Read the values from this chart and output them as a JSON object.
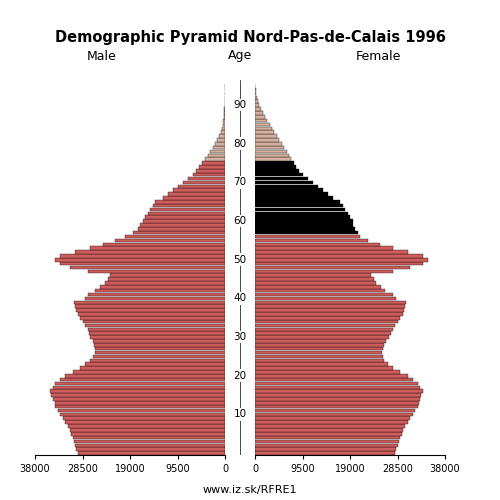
{
  "title": "Demographic Pyramid Nord-Pas-de-Calais 1996",
  "subtitle_left": "Male",
  "subtitle_center": "Age",
  "subtitle_right": "Female",
  "footer": "www.iz.sk/RFRE1",
  "xlim": 38000,
  "ages": [
    0,
    1,
    2,
    3,
    4,
    5,
    6,
    7,
    8,
    9,
    10,
    11,
    12,
    13,
    14,
    15,
    16,
    17,
    18,
    19,
    20,
    21,
    22,
    23,
    24,
    25,
    26,
    27,
    28,
    29,
    30,
    31,
    32,
    33,
    34,
    35,
    36,
    37,
    38,
    39,
    40,
    41,
    42,
    43,
    44,
    45,
    46,
    47,
    48,
    49,
    50,
    51,
    52,
    53,
    54,
    55,
    56,
    57,
    58,
    59,
    60,
    61,
    62,
    63,
    64,
    65,
    66,
    67,
    68,
    69,
    70,
    71,
    72,
    73,
    74,
    75,
    76,
    77,
    78,
    79,
    80,
    81,
    82,
    83,
    84,
    85,
    86,
    87,
    88,
    89,
    90,
    91,
    92,
    93,
    94,
    95
  ],
  "male": [
    29500,
    29800,
    30000,
    30200,
    30500,
    30800,
    31000,
    31500,
    32000,
    32500,
    33000,
    33500,
    34000,
    34000,
    34500,
    34800,
    35000,
    34500,
    34000,
    33000,
    32000,
    30500,
    29000,
    28000,
    27000,
    26500,
    26000,
    26000,
    26200,
    26500,
    27000,
    27200,
    27500,
    28000,
    28500,
    29000,
    29500,
    29800,
    30000,
    30200,
    28000,
    27500,
    26000,
    25000,
    24000,
    23500,
    23000,
    27500,
    31000,
    33000,
    34000,
    33000,
    30000,
    27000,
    24500,
    22000,
    20000,
    18500,
    17500,
    17000,
    16500,
    16000,
    15500,
    15000,
    14500,
    14000,
    12500,
    11500,
    10500,
    9500,
    8500,
    7500,
    6500,
    5800,
    5200,
    4600,
    4000,
    3500,
    3000,
    2500,
    2000,
    1600,
    1200,
    900,
    700,
    500,
    380,
    280,
    200,
    130,
    80,
    50,
    30,
    15,
    8,
    3
  ],
  "female": [
    28000,
    28200,
    28500,
    28800,
    29000,
    29300,
    29600,
    30000,
    30500,
    31000,
    31500,
    32000,
    32500,
    32800,
    33000,
    33200,
    33500,
    33000,
    32500,
    31500,
    30500,
    29000,
    27500,
    26500,
    25800,
    25500,
    25300,
    25500,
    25800,
    26200,
    26800,
    27200,
    27500,
    28000,
    28500,
    29000,
    29500,
    29800,
    30000,
    30200,
    28200,
    27500,
    26000,
    25200,
    24200,
    23700,
    23200,
    27500,
    31000,
    33500,
    34500,
    33500,
    30500,
    27500,
    25000,
    22500,
    21000,
    20500,
    20000,
    19500,
    19500,
    19000,
    18500,
    18000,
    17500,
    17000,
    15500,
    14500,
    13500,
    12500,
    11500,
    10500,
    9500,
    8800,
    8200,
    7700,
    7200,
    6800,
    6300,
    5800,
    5300,
    4800,
    4300,
    3800,
    3300,
    2900,
    2400,
    1900,
    1500,
    1100,
    800,
    550,
    350,
    200,
    100,
    40
  ],
  "color_young": "#cd5c5c",
  "color_old_male": "#d4b0a0",
  "color_black": "#000000",
  "color_dark_female": "#1a1a1a",
  "age_color_threshold_red": 56,
  "age_color_threshold_dark": 57,
  "age_color_threshold_light": 76
}
